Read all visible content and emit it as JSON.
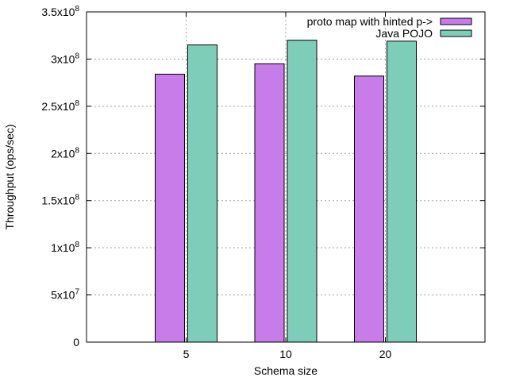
{
  "chart_data": {
    "type": "bar",
    "xlabel": "Schema size",
    "ylabel": "Throughput (ops/sec)",
    "categories": [
      "5",
      "10",
      "20"
    ],
    "ylim": [
      0,
      350000000
    ],
    "yticks": [
      {
        "value": 0,
        "mantissa": "0",
        "exp": ""
      },
      {
        "value": 50000000,
        "mantissa": "5x10",
        "exp": "7"
      },
      {
        "value": 100000000,
        "mantissa": "1x10",
        "exp": "8"
      },
      {
        "value": 150000000,
        "mantissa": "1.5x10",
        "exp": "8"
      },
      {
        "value": 200000000,
        "mantissa": "2x10",
        "exp": "8"
      },
      {
        "value": 250000000,
        "mantissa": "2.5x10",
        "exp": "8"
      },
      {
        "value": 300000000,
        "mantissa": "3x10",
        "exp": "8"
      },
      {
        "value": 350000000,
        "mantissa": "3.5x10",
        "exp": "8"
      }
    ],
    "grid": true,
    "legend_position": "top-right",
    "series": [
      {
        "name": "proto map with hinted p->",
        "color": "#c77cea",
        "values": [
          284000000,
          295000000,
          282000000
        ]
      },
      {
        "name": "Java POJO",
        "color": "#7ecdb8",
        "values": [
          315000000,
          320000000,
          319000000
        ]
      }
    ]
  }
}
